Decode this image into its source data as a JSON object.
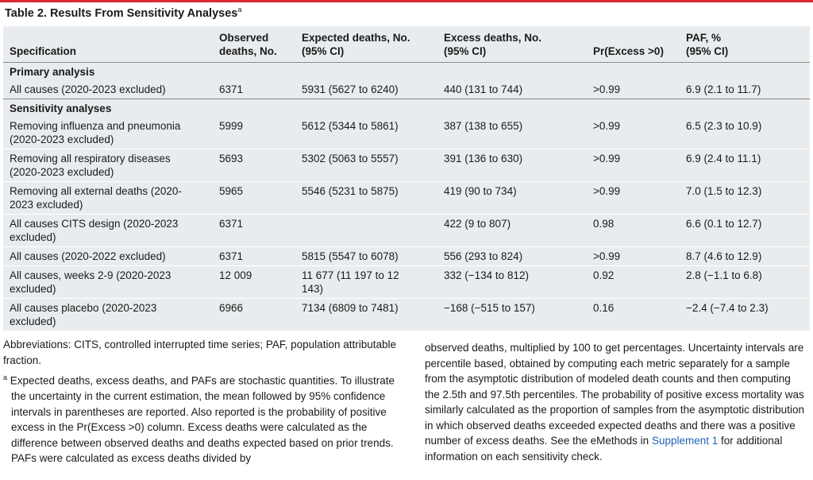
{
  "header": {
    "title": "Table 2. Results From Sensitivity Analyses",
    "title_note": "a"
  },
  "table": {
    "columns": [
      [
        "Specification"
      ],
      [
        "Observed",
        "deaths, No."
      ],
      [
        "Expected deaths, No.",
        "(95% CI)"
      ],
      [
        "Excess deaths, No.",
        "(95% CI)"
      ],
      [
        "Pr(Excess >0)"
      ],
      [
        "PAF, %",
        "(95% CI)"
      ]
    ],
    "sections": [
      {
        "label": "Primary analysis",
        "rows": [
          [
            "All causes (2020-2023 excluded)",
            "6371",
            "5931 (5627 to 6240)",
            "440 (131 to 744)",
            ">0.99",
            "6.9 (2.1 to 11.7)"
          ]
        ]
      },
      {
        "label": "Sensitivity analyses",
        "rows": [
          [
            "Removing influenza and pneumonia (2020-2023 excluded)",
            "5999",
            "5612 (5344 to 5861)",
            "387 (138 to 655)",
            ">0.99",
            "6.5 (2.3 to 10.9)"
          ],
          [
            "Removing all respiratory diseases (2020-2023 excluded)",
            "5693",
            "5302 (5063 to 5557)",
            "391 (136 to 630)",
            ">0.99",
            "6.9 (2.4 to 11.1)"
          ],
          [
            "Removing all external deaths (2020-2023 excluded)",
            "5965",
            "5546 (5231 to 5875)",
            "419 (90 to 734)",
            ">0.99",
            "7.0 (1.5 to 12.3)"
          ],
          [
            "All causes CITS design (2020-2023 excluded)",
            "6371",
            null,
            "422 (9 to 807)",
            "0.98",
            "6.6 (0.1 to 12.7)"
          ],
          [
            "All causes (2020-2022 excluded)",
            "6371",
            "5815 (5547 to 6078)",
            "556 (293 to 824)",
            ">0.99",
            "8.7 (4.6 to 12.9)"
          ],
          [
            "All causes, weeks 2-9 (2020-2023 excluded)",
            "12 009",
            "11 677 (11 197 to 12 143)",
            "332 (−134 to 812)",
            "0.92",
            "2.8 (−1.1 to 6.8)"
          ],
          [
            "All causes placebo (2020-2023 excluded)",
            "6966",
            "7134 (6809 to 7481)",
            "−168 (−515 to 157)",
            "0.16",
            "−2.4 (−7.4 to 2.3)"
          ]
        ]
      }
    ]
  },
  "notes": {
    "abbreviations": "Abbreviations: CITS, controlled interrupted time series; PAF, population attributable fraction.",
    "footnote_marker": "a",
    "footnote_left": "Expected deaths, excess deaths, and PAFs are stochastic quantities. To illustrate the uncertainty in the current estimation, the mean followed by 95% confidence intervals in parentheses are reported. Also reported is the probability of positive excess in the Pr(Excess >0) column. Excess deaths were calculated as the difference between observed deaths and deaths expected based on prior trends. PAFs were calculated as excess deaths divided by",
    "footnote_right": "observed deaths, multiplied by 100 to get percentages. Uncertainty intervals are percentile based, obtained by computing each metric separately for a sample from the asymptotic distribution of modeled death counts and then computing the 2.5th and 97.5th percentiles. The probability of positive excess mortality was similarly calculated as the proportion of samples from the asymptotic distribution in which observed deaths exceeded expected deaths and there was a positive number of excess deaths. See the eMethods in",
    "link": "Supplement 1",
    "footnote_end": "for additional information on each sensitivity check."
  }
}
